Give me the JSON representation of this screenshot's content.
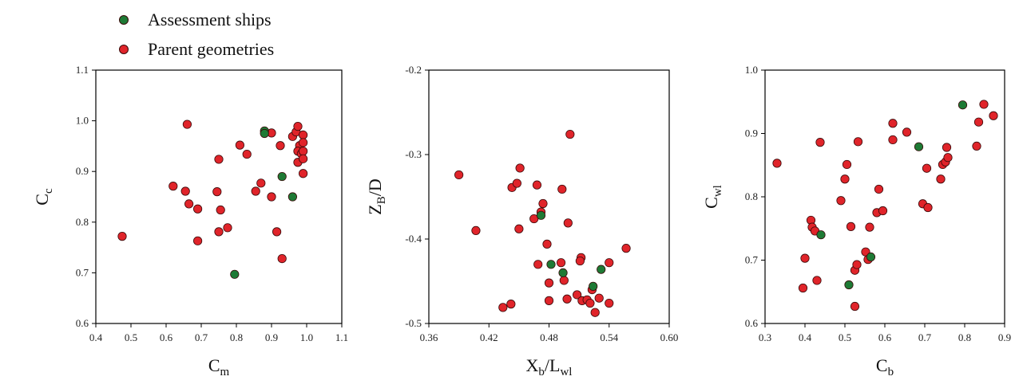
{
  "colors": {
    "assessment": "#1e7a35",
    "parent": "#e0242a",
    "outline": "#3a0a0a"
  },
  "legend": [
    {
      "label": "Assessment ships",
      "series": "assessment"
    },
    {
      "label": "Parent geometries",
      "series": "parent"
    }
  ],
  "chart_data": [
    {
      "type": "scatter",
      "xlabel": {
        "main": "C",
        "sub": "m"
      },
      "ylabel": {
        "main": "C",
        "sub": "c"
      },
      "xlim": [
        0.4,
        1.1
      ],
      "ylim": [
        0.6,
        1.1
      ],
      "xticks": [
        "0.4",
        "0.5",
        "0.6",
        "0.7",
        "0.8",
        "0.9",
        "1.0",
        "1.1"
      ],
      "yticks": [
        "0.6",
        "0.7",
        "0.8",
        "0.9",
        "1.0",
        "1.1"
      ],
      "grid": false,
      "series": [
        {
          "key": "assessment",
          "points": [
            [
              0.88,
              0.98
            ],
            [
              0.88,
              0.975
            ],
            [
              0.93,
              0.89
            ],
            [
              0.96,
              0.85
            ],
            [
              0.795,
              0.697
            ]
          ]
        },
        {
          "key": "parent",
          "points": [
            [
              0.475,
              0.772
            ],
            [
              0.66,
              0.993
            ],
            [
              0.62,
              0.871
            ],
            [
              0.655,
              0.861
            ],
            [
              0.665,
              0.836
            ],
            [
              0.69,
              0.826
            ],
            [
              0.69,
              0.763
            ],
            [
              0.75,
              0.924
            ],
            [
              0.745,
              0.86
            ],
            [
              0.755,
              0.824
            ],
            [
              0.75,
              0.781
            ],
            [
              0.775,
              0.789
            ],
            [
              0.81,
              0.952
            ],
            [
              0.83,
              0.934
            ],
            [
              0.87,
              0.877
            ],
            [
              0.855,
              0.861
            ],
            [
              0.9,
              0.976
            ],
            [
              0.925,
              0.951
            ],
            [
              0.9,
              0.85
            ],
            [
              0.915,
              0.781
            ],
            [
              0.93,
              0.728
            ],
            [
              0.96,
              0.969
            ],
            [
              0.97,
              0.978
            ],
            [
              0.975,
              0.989
            ],
            [
              0.99,
              0.972
            ],
            [
              0.98,
              0.951
            ],
            [
              0.99,
              0.957
            ],
            [
              0.975,
              0.94
            ],
            [
              0.985,
              0.935
            ],
            [
              0.99,
              0.94
            ],
            [
              0.975,
              0.918
            ],
            [
              0.99,
              0.925
            ],
            [
              0.99,
              0.896
            ]
          ]
        }
      ]
    },
    {
      "type": "scatter",
      "xlabel": {
        "main": "X",
        "sub": "b",
        "tail": "/L",
        "tailsub": "wl"
      },
      "ylabel": {
        "main": "Z",
        "sub": "B",
        "tail": "/D"
      },
      "xlim": [
        0.36,
        0.6
      ],
      "ylim": [
        -0.5,
        -0.2
      ],
      "xticks": [
        "0.36",
        "0.42",
        "0.48",
        "0.54",
        "0.60"
      ],
      "yticks": [
        "-0.5",
        "-0.4",
        "-0.3",
        "-0.2"
      ],
      "grid": false,
      "series": [
        {
          "key": "assessment",
          "points": [
            [
              0.472,
              -0.372
            ],
            [
              0.482,
              -0.43
            ],
            [
              0.494,
              -0.44
            ],
            [
              0.524,
              -0.456
            ],
            [
              0.532,
              -0.436
            ]
          ]
        },
        {
          "key": "parent",
          "points": [
            [
              0.39,
              -0.324
            ],
            [
              0.407,
              -0.39
            ],
            [
              0.434,
              -0.481
            ],
            [
              0.442,
              -0.477
            ],
            [
              0.443,
              -0.339
            ],
            [
              0.448,
              -0.334
            ],
            [
              0.451,
              -0.316
            ],
            [
              0.45,
              -0.388
            ],
            [
              0.465,
              -0.376
            ],
            [
              0.468,
              -0.336
            ],
            [
              0.472,
              -0.368
            ],
            [
              0.474,
              -0.358
            ],
            [
              0.469,
              -0.43
            ],
            [
              0.478,
              -0.406
            ],
            [
              0.48,
              -0.452
            ],
            [
              0.48,
              -0.473
            ],
            [
              0.493,
              -0.341
            ],
            [
              0.492,
              -0.428
            ],
            [
              0.495,
              -0.449
            ],
            [
              0.499,
              -0.381
            ],
            [
              0.501,
              -0.276
            ],
            [
              0.498,
              -0.471
            ],
            [
              0.508,
              -0.466
            ],
            [
              0.512,
              -0.422
            ],
            [
              0.511,
              -0.426
            ],
            [
              0.513,
              -0.473
            ],
            [
              0.518,
              -0.472
            ],
            [
              0.521,
              -0.476
            ],
            [
              0.523,
              -0.46
            ],
            [
              0.526,
              -0.487
            ],
            [
              0.53,
              -0.47
            ],
            [
              0.54,
              -0.476
            ],
            [
              0.54,
              -0.428
            ],
            [
              0.557,
              -0.411
            ]
          ]
        }
      ]
    },
    {
      "type": "scatter",
      "xlabel": {
        "main": "C",
        "sub": "b"
      },
      "ylabel": {
        "main": "C",
        "sub": "wl"
      },
      "xlim": [
        0.3,
        0.9
      ],
      "ylim": [
        0.6,
        1.0
      ],
      "xticks": [
        "0.3",
        "0.4",
        "0.5",
        "0.6",
        "0.7",
        "0.8",
        "0.9"
      ],
      "yticks": [
        "0.6",
        "0.7",
        "0.8",
        "0.9",
        "1.0"
      ],
      "grid": false,
      "series": [
        {
          "key": "assessment",
          "points": [
            [
              0.44,
              0.74
            ],
            [
              0.51,
              0.661
            ],
            [
              0.565,
              0.705
            ],
            [
              0.685,
              0.879
            ],
            [
              0.795,
              0.945
            ]
          ]
        },
        {
          "key": "parent",
          "points": [
            [
              0.33,
              0.853
            ],
            [
              0.395,
              0.656
            ],
            [
              0.4,
              0.703
            ],
            [
              0.415,
              0.763
            ],
            [
              0.418,
              0.752
            ],
            [
              0.425,
              0.746
            ],
            [
              0.43,
              0.668
            ],
            [
              0.438,
              0.886
            ],
            [
              0.49,
              0.794
            ],
            [
              0.5,
              0.828
            ],
            [
              0.505,
              0.851
            ],
            [
              0.515,
              0.753
            ],
            [
              0.525,
              0.684
            ],
            [
              0.525,
              0.627
            ],
            [
              0.53,
              0.693
            ],
            [
              0.533,
              0.887
            ],
            [
              0.552,
              0.713
            ],
            [
              0.562,
              0.752
            ],
            [
              0.558,
              0.701
            ],
            [
              0.58,
              0.775
            ],
            [
              0.585,
              0.812
            ],
            [
              0.595,
              0.778
            ],
            [
              0.62,
              0.916
            ],
            [
              0.62,
              0.89
            ],
            [
              0.655,
              0.902
            ],
            [
              0.695,
              0.789
            ],
            [
              0.705,
              0.845
            ],
            [
              0.708,
              0.783
            ],
            [
              0.74,
              0.828
            ],
            [
              0.745,
              0.851
            ],
            [
              0.752,
              0.855
            ],
            [
              0.755,
              0.878
            ],
            [
              0.758,
              0.862
            ],
            [
              0.83,
              0.88
            ],
            [
              0.835,
              0.918
            ],
            [
              0.848,
              0.946
            ],
            [
              0.872,
              0.928
            ]
          ]
        }
      ]
    }
  ]
}
